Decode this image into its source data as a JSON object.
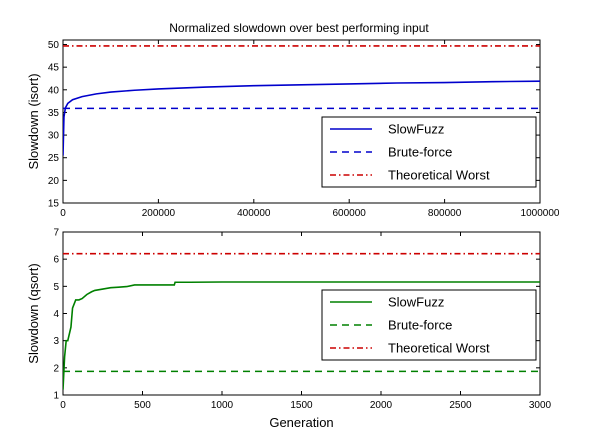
{
  "figure_title": "Normalized slowdown over best performing input",
  "chart_data": [
    {
      "type": "line",
      "title": "Normalized slowdown over best performing input",
      "xlabel": "",
      "ylabel": "Slowdown (isort)",
      "xlim": [
        0,
        1000000
      ],
      "ylim": [
        15,
        51
      ],
      "xticks": [
        "0",
        "200000",
        "400000",
        "600000",
        "800000",
        "1000000"
      ],
      "xtick_values": [
        0,
        200000,
        400000,
        600000,
        800000,
        1000000
      ],
      "yticks": [
        "15",
        "20",
        "25",
        "30",
        "35",
        "40",
        "45",
        "50"
      ],
      "ytick_values": [
        15,
        20,
        25,
        30,
        35,
        40,
        45,
        50
      ],
      "grid": false,
      "legend_position": "bottom-right",
      "series": [
        {
          "name": "SlowFuzz",
          "style": "solid",
          "color": "#0000cc",
          "x": [
            0,
            2000,
            5000,
            10000,
            20000,
            40000,
            70000,
            100000,
            150000,
            200000,
            300000,
            400000,
            500000,
            600000,
            700000,
            800000,
            900000,
            1000000
          ],
          "y": [
            25.5,
            34,
            36,
            37,
            37.8,
            38.5,
            39.1,
            39.5,
            39.9,
            40.2,
            40.6,
            40.9,
            41.1,
            41.3,
            41.5,
            41.6,
            41.8,
            41.9
          ]
        },
        {
          "name": "Brute-force",
          "style": "dashed",
          "color": "#0000cc",
          "x": [
            0,
            1000000
          ],
          "y": [
            35.9,
            35.9
          ]
        },
        {
          "name": "Theoretical Worst",
          "style": "dashdot",
          "color": "#cc0000",
          "x": [
            0,
            1000000
          ],
          "y": [
            49.7,
            49.7
          ]
        }
      ]
    },
    {
      "type": "line",
      "title": "",
      "xlabel": "Generation",
      "ylabel": "Slowdown (qsort)",
      "xlim": [
        0,
        3000
      ],
      "ylim": [
        1,
        7
      ],
      "xticks": [
        "0",
        "500",
        "1000",
        "1500",
        "2000",
        "2500",
        "3000"
      ],
      "xtick_values": [
        0,
        500,
        1000,
        1500,
        2000,
        2500,
        3000
      ],
      "yticks": [
        "1",
        "2",
        "3",
        "4",
        "5",
        "6",
        "7"
      ],
      "ytick_values": [
        1,
        2,
        3,
        4,
        5,
        6,
        7
      ],
      "grid": false,
      "legend_position": "bottom-right",
      "series": [
        {
          "name": "SlowFuzz",
          "style": "solid",
          "color": "#008000",
          "x": [
            0,
            5,
            10,
            20,
            30,
            50,
            60,
            80,
            100,
            120,
            150,
            180,
            200,
            250,
            300,
            350,
            400,
            450,
            500,
            550,
            600,
            700,
            705,
            800,
            1000,
            1500,
            2000,
            2500,
            3000
          ],
          "y": [
            1.2,
            1.8,
            2.4,
            3.0,
            3.0,
            3.5,
            4.2,
            4.5,
            4.5,
            4.55,
            4.7,
            4.8,
            4.85,
            4.9,
            4.95,
            4.97,
            4.99,
            5.05,
            5.05,
            5.05,
            5.05,
            5.05,
            5.15,
            5.15,
            5.16,
            5.16,
            5.16,
            5.16,
            5.16
          ]
        },
        {
          "name": "Brute-force",
          "style": "dashed",
          "color": "#008000",
          "x": [
            0,
            3000
          ],
          "y": [
            1.87,
            1.87
          ]
        },
        {
          "name": "Theoretical Worst",
          "style": "dashdot",
          "color": "#cc0000",
          "x": [
            0,
            3000
          ],
          "y": [
            6.2,
            6.2
          ]
        }
      ]
    }
  ]
}
